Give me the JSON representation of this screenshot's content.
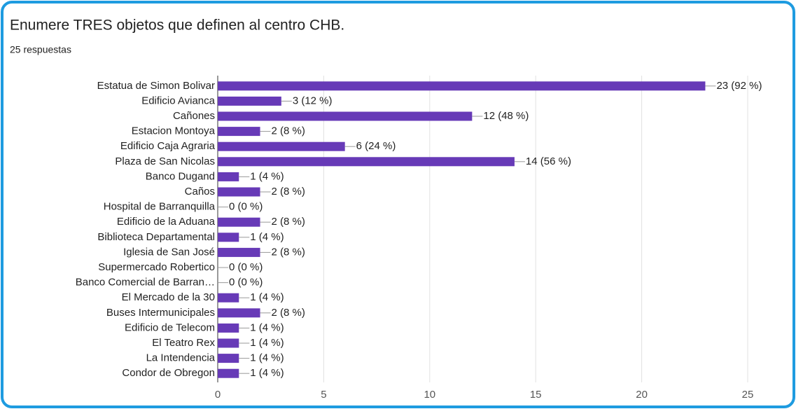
{
  "chart_data": {
    "type": "bar",
    "title": "Enumere TRES objetos que definen al centro CHB.",
    "subtitle": "25 respuestas",
    "categories": [
      "Estatua de Simon Bolivar",
      "Edificio Avianca",
      "Cañones",
      "Estacion Montoya",
      "Edificio Caja Agraria",
      "Plaza de San Nicolas",
      "Banco Dugand",
      "Caños",
      "Hospital de Barranquilla",
      "Edificio de la Aduana",
      "Biblioteca Departamental",
      "Iglesia de San José",
      "Supermercado Robertico",
      "Banco Comercial de Barran…",
      "El Mercado de la 30",
      "Buses Intermunicipales",
      "Edificio de Telecom",
      "El Teatro Rex",
      "La Intendencia",
      "Condor de Obregon"
    ],
    "values": [
      23,
      3,
      12,
      2,
      6,
      14,
      1,
      2,
      0,
      2,
      1,
      2,
      0,
      0,
      1,
      2,
      1,
      1,
      1,
      1
    ],
    "value_labels": [
      "23 (92 %)",
      "3 (12 %)",
      "12 (48 %)",
      "2 (8 %)",
      "6 (24 %)",
      "14 (56 %)",
      "1 (4 %)",
      "2 (8 %)",
      "0 (0 %)",
      "2 (8 %)",
      "1 (4 %)",
      "2 (8 %)",
      "0 (0 %)",
      "0 (0 %)",
      "1 (4 %)",
      "2 (8 %)",
      "1 (4 %)",
      "1 (4 %)",
      "1 (4 %)",
      "1 (4 %)"
    ],
    "color": "#673ab7",
    "xlim": [
      0,
      25
    ],
    "xticks": [
      0,
      5,
      10,
      15,
      20,
      25
    ],
    "grid": true
  }
}
